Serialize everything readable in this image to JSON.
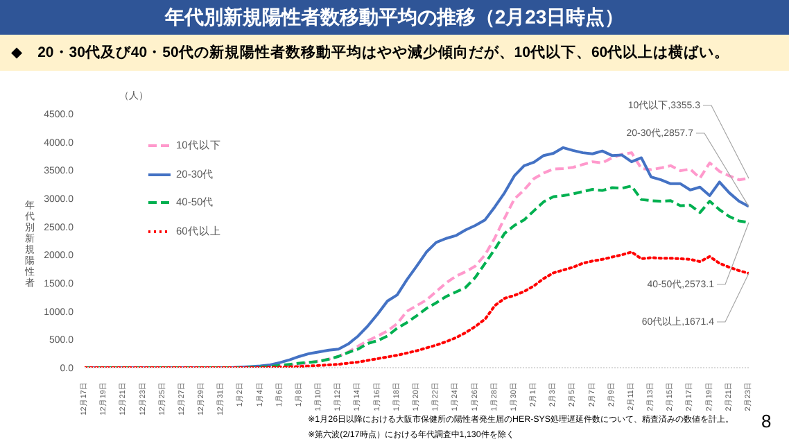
{
  "chart_data": {
    "type": "line",
    "title": "年代別新規陽性者数移動平均の推移（2月23日時点）",
    "subtitle": "◆　20・30代及び40・50代の新規陽性者数移動平均はやや減少傾向だが、10代以下、60代以上は横ばい。",
    "ylabel": "年代別新規陽性者",
    "categories": [
      "12月17日",
      null,
      "12月19日",
      null,
      "12月21日",
      null,
      "12月23日",
      null,
      "12月25日",
      null,
      "12月27日",
      null,
      "12月29日",
      null,
      "12月31日",
      null,
      "1月2日",
      null,
      "1月4日",
      null,
      "1月6日",
      null,
      "1月8日",
      null,
      "1月10日",
      null,
      "1月12日",
      null,
      "1月14日",
      null,
      "1月16日",
      null,
      "1月18日",
      null,
      "1月20日",
      null,
      "1月22日",
      null,
      "1月24日",
      null,
      "1月26日",
      null,
      "1月28日",
      null,
      "1月30日",
      null,
      "2月1日",
      null,
      "2月3日",
      null,
      "2月5日",
      null,
      "2月7日",
      null,
      "2月9日",
      null,
      "2月11日",
      null,
      "2月13日",
      null,
      "2月15日",
      null,
      "2月17日",
      null,
      "2月19日",
      null,
      "2月21日",
      null,
      "2月23日"
    ],
    "series": [
      {
        "name": "10代以下",
        "color": "#ff99cc",
        "line_style": "dashed",
        "values": [
          null,
          null,
          null,
          null,
          null,
          null,
          null,
          null,
          null,
          null,
          null,
          null,
          null,
          null,
          null,
          null,
          null,
          null,
          10,
          20,
          30,
          40,
          60,
          90,
          120,
          150,
          200,
          280,
          380,
          480,
          560,
          650,
          780,
          1000,
          1100,
          1200,
          1350,
          1500,
          1620,
          1700,
          1800,
          2000,
          2300,
          2650,
          2990,
          3150,
          3350,
          3450,
          3520,
          3530,
          3550,
          3600,
          3650,
          3630,
          3720,
          3780,
          3810,
          3530,
          3510,
          3540,
          3580,
          3490,
          3520,
          3360,
          3630,
          3480,
          3400,
          3330,
          3355.3
        ]
      },
      {
        "name": "20-30代",
        "color": "#4472c4",
        "line_style": "solid",
        "values": [
          0,
          0,
          0,
          0,
          0,
          0,
          0,
          0,
          0,
          0,
          0,
          0,
          0,
          0,
          0,
          0,
          10,
          20,
          30,
          50,
          90,
          140,
          200,
          250,
          280,
          310,
          330,
          420,
          560,
          740,
          950,
          1180,
          1290,
          1560,
          1800,
          2050,
          2220,
          2290,
          2340,
          2440,
          2520,
          2620,
          2850,
          3100,
          3400,
          3580,
          3640,
          3760,
          3800,
          3900,
          3850,
          3810,
          3790,
          3840,
          3760,
          3770,
          3650,
          3720,
          3380,
          3330,
          3260,
          3260,
          3150,
          3200,
          3050,
          3290,
          3100,
          2950,
          2857.7
        ]
      },
      {
        "name": "40-50代",
        "color": "#00b050",
        "line_style": "dashed",
        "values": [
          0,
          0,
          0,
          0,
          0,
          0,
          0,
          0,
          0,
          0,
          0,
          0,
          0,
          0,
          0,
          0,
          0,
          5,
          10,
          20,
          40,
          60,
          80,
          95,
          110,
          150,
          200,
          270,
          330,
          430,
          480,
          560,
          700,
          800,
          920,
          1050,
          1150,
          1260,
          1340,
          1420,
          1600,
          1850,
          2100,
          2380,
          2520,
          2620,
          2780,
          2940,
          3030,
          3050,
          3080,
          3120,
          3160,
          3140,
          3190,
          3180,
          3220,
          2980,
          2960,
          2950,
          2960,
          2870,
          2880,
          2750,
          2950,
          2800,
          2680,
          2600,
          2573.1
        ]
      },
      {
        "name": "60代以上",
        "color": "#ff0000",
        "line_style": "dotted",
        "values": [
          0,
          0,
          0,
          0,
          0,
          0,
          0,
          0,
          0,
          0,
          0,
          0,
          0,
          0,
          0,
          0,
          0,
          0,
          0,
          5,
          10,
          15,
          20,
          30,
          40,
          50,
          60,
          80,
          100,
          130,
          160,
          190,
          220,
          260,
          300,
          350,
          400,
          460,
          530,
          620,
          730,
          860,
          1100,
          1230,
          1280,
          1350,
          1450,
          1580,
          1680,
          1730,
          1780,
          1850,
          1890,
          1920,
          1960,
          2000,
          2050,
          1930,
          1950,
          1940,
          1940,
          1930,
          1920,
          1880,
          1970,
          1850,
          1780,
          1720,
          1671.4
        ]
      }
    ],
    "ylim": [
      0,
      4500
    ],
    "yticks": [
      {
        "value": 0,
        "label": "0.0"
      },
      {
        "value": 500,
        "label": "500.0"
      },
      {
        "value": 1000,
        "label": "1000.0"
      },
      {
        "value": 1500,
        "label": "1500.0"
      },
      {
        "value": 2000,
        "label": "2000.0"
      },
      {
        "value": 2500,
        "label": "2500.0"
      },
      {
        "value": 3000,
        "label": "3000.0"
      },
      {
        "value": 3500,
        "label": "3500.0"
      },
      {
        "value": 4000,
        "label": "4000.0"
      },
      {
        "value": 4500,
        "label": "4500.0"
      }
    ],
    "legend": "top left",
    "marker": "none",
    "annotations": [
      "（人）",
      {
        "text": "10代以下,3355.3",
        "x": "2月23日",
        "y": 3355.3
      },
      {
        "text": "20-30代,2857.7",
        "x": "2月23日",
        "y": 2857.7
      },
      {
        "text": "40-50代,2573.1",
        "x": "2月23日",
        "y": 2573.1
      },
      {
        "text": "60代以上,1671.4",
        "x": "2月23日",
        "y": 1671.4
      },
      "※1月26日以降における大阪市保健所の陽性者発生届のHER-SYS処理遅延件数について、精査済みの数値を計上。",
      "※第六波(2/17時点）における年代調査中1,130件を除く",
      "8"
    ]
  }
}
